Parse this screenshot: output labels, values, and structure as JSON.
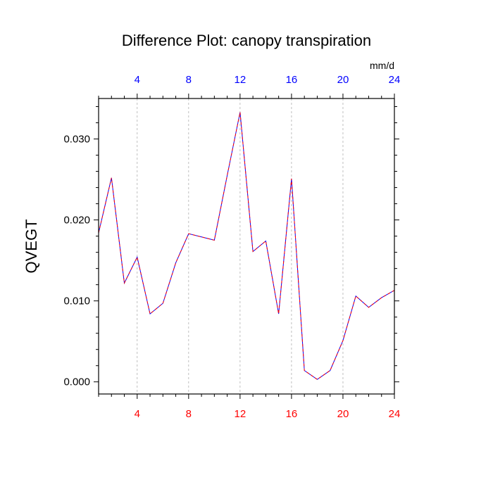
{
  "chart_data": {
    "type": "line",
    "title": "Difference Plot: canopy transpiration",
    "ylabel": "QVEGT",
    "units_label": "mm/d",
    "xlim": [
      1,
      24
    ],
    "ylim": [
      -0.0015,
      0.035
    ],
    "y_ticks": [
      {
        "value": 0.0,
        "label": "0.000"
      },
      {
        "value": 0.01,
        "label": "0.010"
      },
      {
        "value": 0.02,
        "label": "0.020"
      },
      {
        "value": 0.03,
        "label": "0.030"
      }
    ],
    "y_minor_step": 0.002,
    "x_ticks_bottom": [
      {
        "value": 4,
        "label": "4"
      },
      {
        "value": 8,
        "label": "8"
      },
      {
        "value": 12,
        "label": "12"
      },
      {
        "value": 16,
        "label": "16"
      },
      {
        "value": 20,
        "label": "20"
      },
      {
        "value": 24,
        "label": "24"
      }
    ],
    "x_ticks_top": [
      {
        "value": 4,
        "label": "4"
      },
      {
        "value": 8,
        "label": "8"
      },
      {
        "value": 12,
        "label": "12"
      },
      {
        "value": 16,
        "label": "16"
      },
      {
        "value": 20,
        "label": "20"
      },
      {
        "value": 24,
        "label": "24"
      }
    ],
    "x_minor_step": 1,
    "grid": "vertical dashed at major x ticks",
    "colors": {
      "bottom_axis_labels": "#ff0000",
      "top_axis_labels": "#0000ff",
      "series_solid": "#0000ff",
      "series_dashed": "#ff0000",
      "grid": "#b0b0b0",
      "frame": "#000000"
    },
    "series": [
      {
        "x": [
          1,
          2,
          3,
          4,
          5,
          6,
          7,
          8,
          9,
          10,
          11,
          12,
          13,
          14,
          15,
          16,
          17,
          18,
          19,
          20,
          21,
          22,
          23,
          24
        ],
        "values": [
          0.0184,
          0.0252,
          0.0122,
          0.0154,
          0.0084,
          0.0097,
          0.0147,
          0.0183,
          0.0179,
          0.0175,
          0.0255,
          0.0333,
          0.0161,
          0.0174,
          0.0084,
          0.0251,
          0.0014,
          0.0003,
          0.0014,
          0.0051,
          0.0106,
          0.0092,
          0.0104,
          0.0113
        ]
      }
    ]
  }
}
